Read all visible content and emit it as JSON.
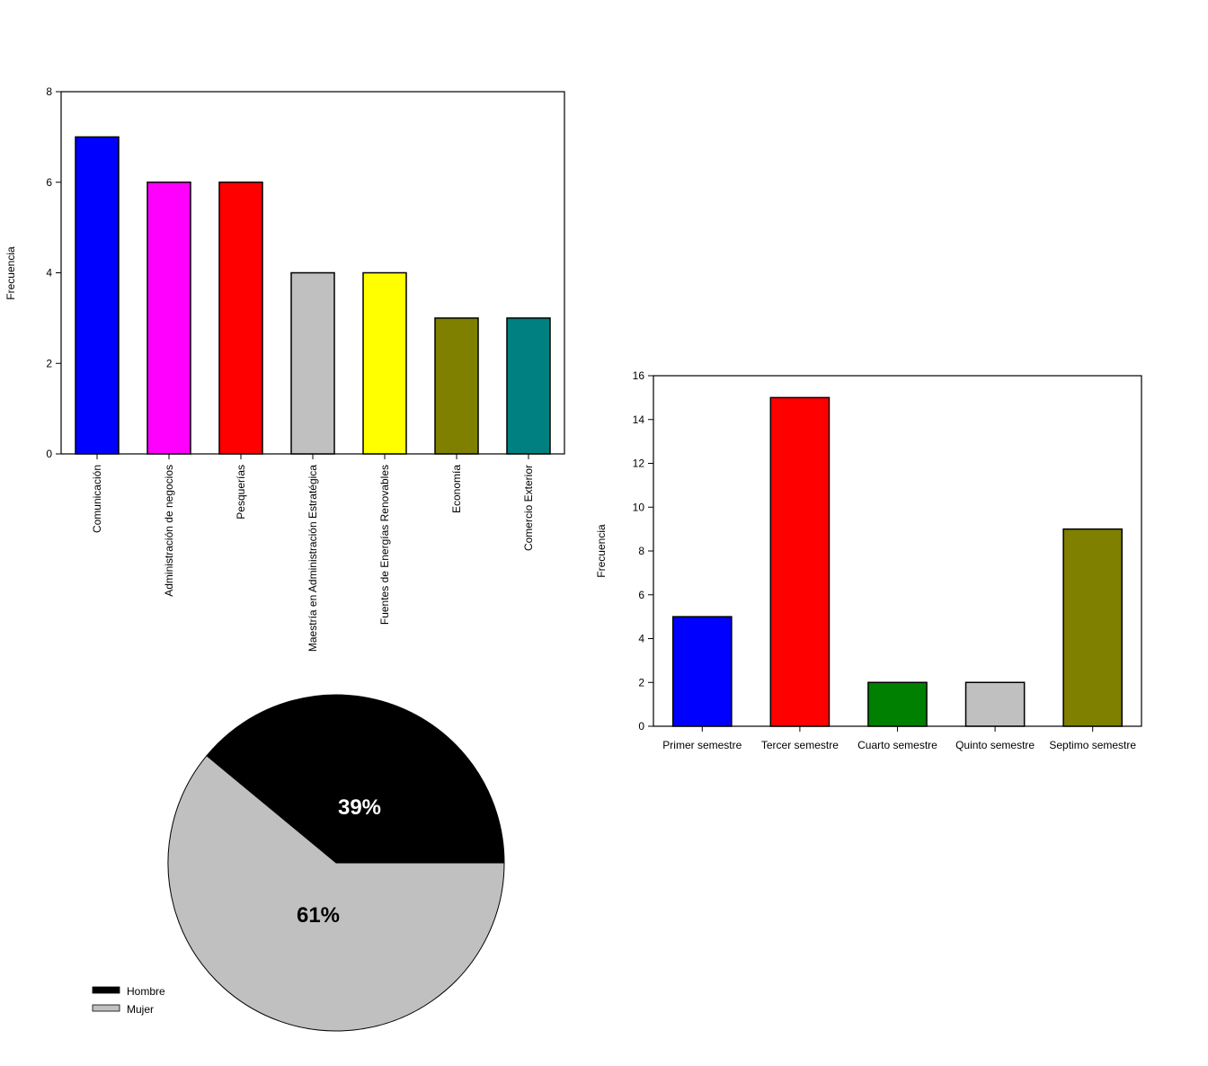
{
  "chart_data": [
    {
      "type": "bar",
      "ylabel": "Frecuencia",
      "ylim": [
        0,
        8
      ],
      "yticks": [
        "0",
        "2",
        "4",
        "6",
        "8"
      ],
      "categories": [
        "Comunicación",
        "Administración de negocios",
        "Pesquerías",
        "Maestría en Administración Estratégica",
        "Fuentes de Energías Renovables",
        "Economía",
        "Comercio Exterior"
      ],
      "values": [
        7,
        6,
        6,
        4,
        4,
        3,
        3
      ],
      "colors": [
        "#0000ff",
        "#ff00ff",
        "#ff0000",
        "#c0c0c0",
        "#ffff00",
        "#808000",
        "#008080"
      ]
    },
    {
      "type": "bar",
      "ylabel": "Frecuencia",
      "ylim": [
        0,
        16
      ],
      "yticks": [
        "0",
        "2",
        "4",
        "6",
        "8",
        "10",
        "12",
        "14",
        "16"
      ],
      "categories": [
        "Primer semestre",
        "Tercer semestre",
        "Cuarto semestre",
        "Quinto semestre",
        "Septimo semestre"
      ],
      "values": [
        5,
        15,
        2,
        2,
        9
      ],
      "colors": [
        "#0000ff",
        "#ff0000",
        "#008000",
        "#c0c0c0",
        "#808000"
      ]
    },
    {
      "type": "pie",
      "slices": [
        {
          "name": "Hombre",
          "value": 39,
          "label": "39%",
          "color": "#000000",
          "label_color": "#ffffff"
        },
        {
          "name": "Mujer",
          "value": 61,
          "label": "61%",
          "color": "#c0c0c0",
          "label_color": "#000000"
        }
      ],
      "legend_position": "bottom-left"
    }
  ]
}
